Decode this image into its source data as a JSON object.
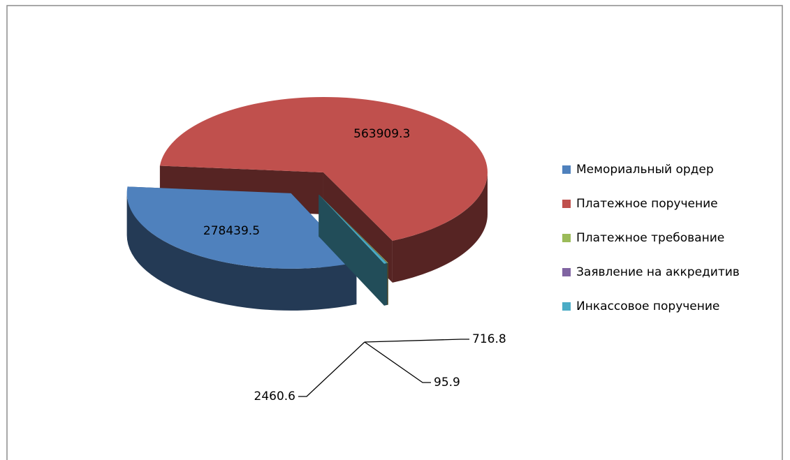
{
  "chart_data": {
    "type": "pie3d",
    "categories": [
      "Мемориальный ордер",
      "Платежное поручение",
      "Платежное требование",
      "Заявление на аккредитив",
      "Инкассовое поручение"
    ],
    "values": [
      278439.5,
      563909.3,
      716.8,
      95.9,
      2460.6
    ],
    "colors": [
      "#4f81bd",
      "#c0504d",
      "#9bbb59",
      "#8064a2",
      "#4bacc6"
    ],
    "legend": "right"
  }
}
